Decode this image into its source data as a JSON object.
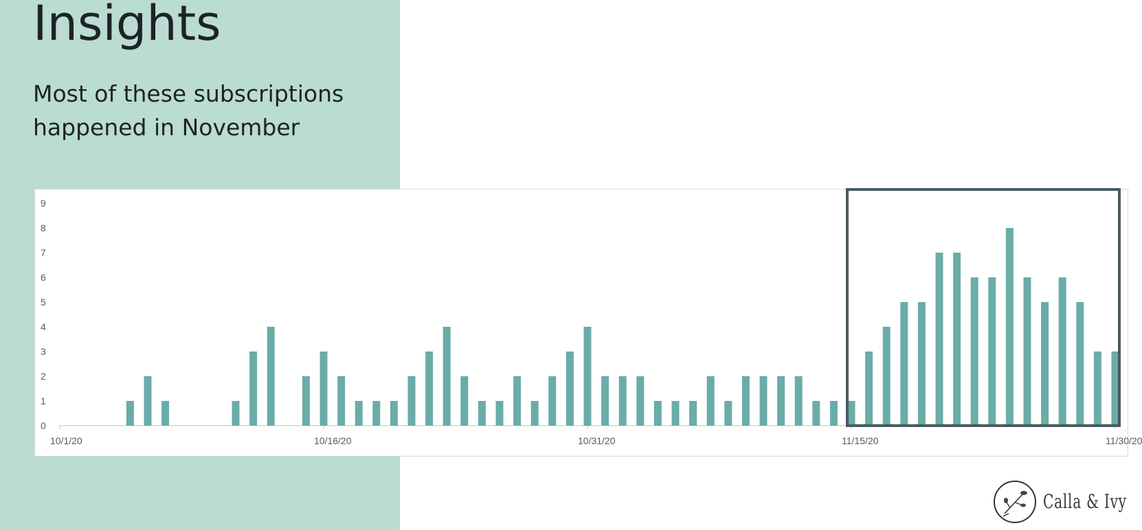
{
  "slide": {
    "title": "Insights",
    "subtitle": "Most of these subscriptions happened in November",
    "panel_color": "#badcd1",
    "logo_text": "Calla & Ivy",
    "logo_icon": "flower-sprig-icon"
  },
  "chart_data": {
    "type": "bar",
    "title": "",
    "xlabel": "",
    "ylabel": "",
    "ylim": [
      0,
      9
    ],
    "y_ticks": [
      "0",
      "1",
      "2",
      "3",
      "4",
      "5",
      "6",
      "7",
      "8",
      "9"
    ],
    "x_tick_labels": [
      "10/1/20",
      "10/16/20",
      "10/31/20",
      "11/15/20",
      "11/30/20"
    ],
    "x_start": "10/1/20",
    "x_end": "11/30/20",
    "bar_color": "#6aaca8",
    "highlight_color": "#4a5a63",
    "highlight_range": [
      "11/15/20",
      "11/30/20"
    ],
    "grid": false,
    "legend": "none",
    "categories": [
      "10/1/20",
      "10/2/20",
      "10/3/20",
      "10/4/20",
      "10/5/20",
      "10/6/20",
      "10/7/20",
      "10/8/20",
      "10/9/20",
      "10/10/20",
      "10/11/20",
      "10/12/20",
      "10/13/20",
      "10/14/20",
      "10/15/20",
      "10/16/20",
      "10/17/20",
      "10/18/20",
      "10/19/20",
      "10/20/20",
      "10/21/20",
      "10/22/20",
      "10/23/20",
      "10/24/20",
      "10/25/20",
      "10/26/20",
      "10/27/20",
      "10/28/20",
      "10/29/20",
      "10/30/20",
      "10/31/20",
      "11/1/20",
      "11/2/20",
      "11/3/20",
      "11/4/20",
      "11/5/20",
      "11/6/20",
      "11/7/20",
      "11/8/20",
      "11/9/20",
      "11/10/20",
      "11/11/20",
      "11/12/20",
      "11/13/20",
      "11/14/20",
      "11/15/20",
      "11/16/20",
      "11/17/20",
      "11/18/20",
      "11/19/20",
      "11/20/20",
      "11/21/20",
      "11/22/20",
      "11/23/20",
      "11/24/20",
      "11/25/20",
      "11/26/20",
      "11/27/20",
      "11/28/20",
      "11/29/20",
      "11/30/20"
    ],
    "values": [
      0,
      0,
      0,
      0,
      1,
      2,
      1,
      0,
      0,
      0,
      1,
      3,
      4,
      0,
      2,
      3,
      2,
      1,
      1,
      1,
      2,
      3,
      4,
      2,
      1,
      1,
      2,
      1,
      2,
      3,
      4,
      2,
      2,
      2,
      1,
      1,
      1,
      2,
      1,
      2,
      2,
      2,
      2,
      1,
      1,
      1,
      3,
      4,
      5,
      5,
      7,
      7,
      6,
      6,
      8,
      6,
      5,
      6,
      5,
      3,
      3
    ]
  }
}
